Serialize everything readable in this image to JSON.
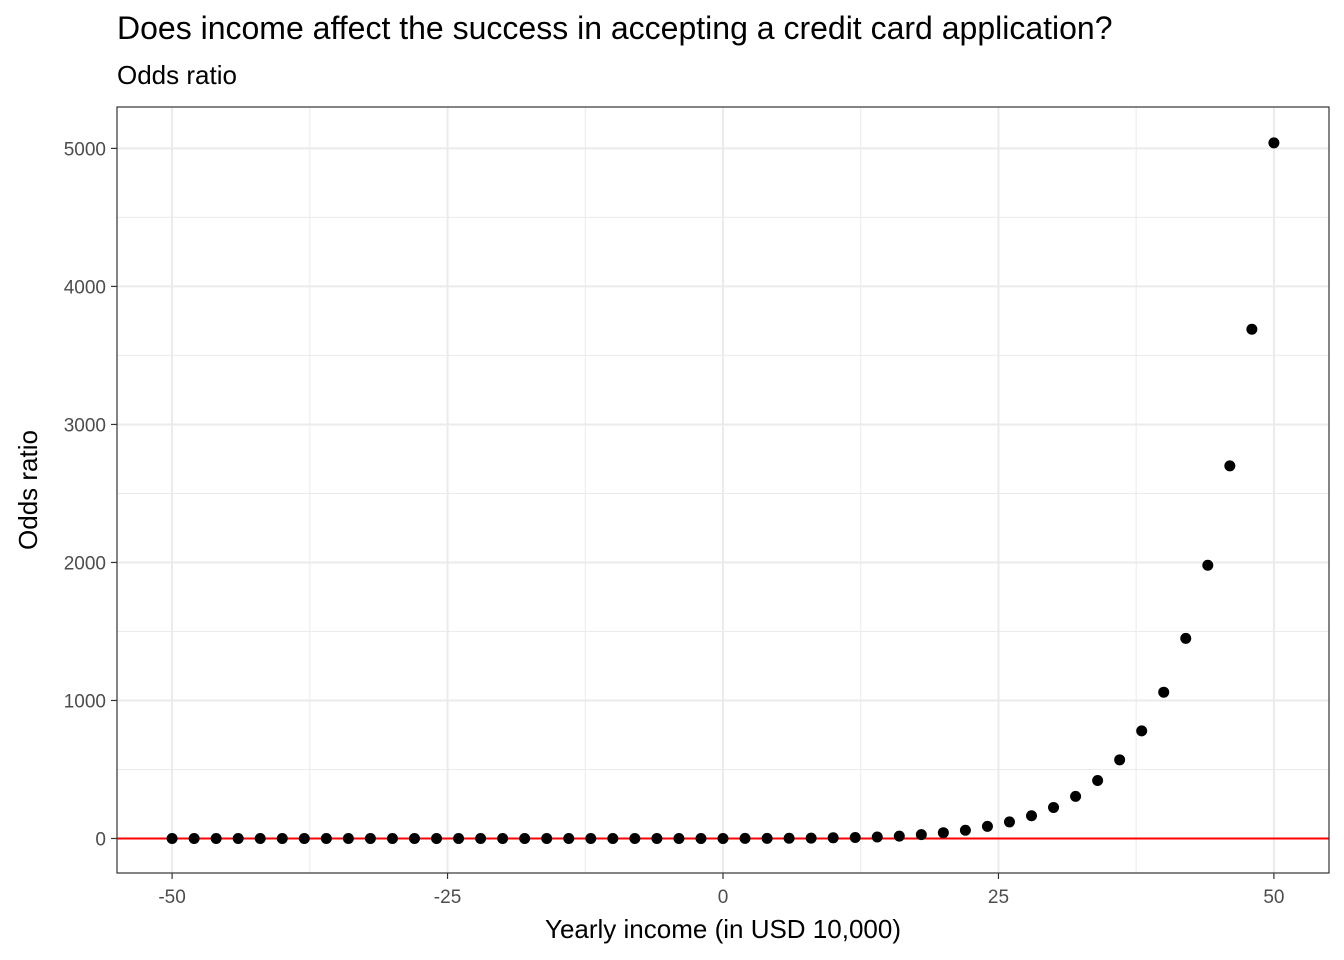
{
  "chart_data": {
    "type": "scatter",
    "title": "Does income affect the success in accepting a credit card application?",
    "subtitle": "Odds ratio",
    "xlabel": "Yearly income (in USD 10,000)",
    "ylabel": "Odds ratio",
    "xlim": [
      -55,
      55
    ],
    "ylim": [
      -250,
      5300
    ],
    "xticks": [
      -50,
      -25,
      0,
      25,
      50
    ],
    "yticks": [
      0,
      1000,
      2000,
      3000,
      4000,
      5000
    ],
    "grid": true,
    "reference_line": {
      "y": 0,
      "color": "#ff0000"
    },
    "point_color": "#000000",
    "points": {
      "x": [
        -50,
        -48,
        -46,
        -44,
        -42,
        -40,
        -38,
        -36,
        -34,
        -32,
        -30,
        -28,
        -26,
        -24,
        -22,
        -20,
        -18,
        -16,
        -14,
        -12,
        -10,
        -8,
        -6,
        -4,
        -2,
        0,
        2,
        4,
        6,
        8,
        10,
        12,
        14,
        16,
        18,
        20,
        22,
        24,
        26,
        28,
        30,
        32,
        34,
        36,
        38,
        40,
        42,
        44,
        46,
        48,
        50
      ],
      "y": [
        0,
        0,
        0,
        0,
        0,
        0,
        0,
        0,
        0,
        0,
        0,
        0,
        0,
        0,
        0,
        0,
        0,
        0,
        0,
        0,
        0,
        0,
        0,
        0,
        0,
        0,
        1,
        1,
        2,
        3,
        5,
        7,
        11,
        17,
        28,
        42,
        60,
        88,
        120,
        165,
        225,
        305,
        420,
        570,
        780,
        1060,
        1450,
        1980,
        2700,
        3690,
        5040
      ]
    }
  }
}
